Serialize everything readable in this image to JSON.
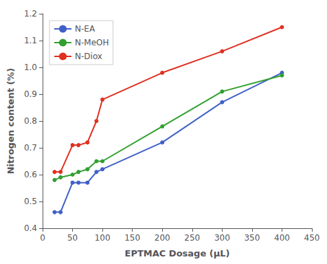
{
  "chart_data": {
    "type": "line",
    "title": "",
    "xlabel": "EPTMAC Dosage (μL)",
    "ylabel": "Nitrogen content (%)",
    "x": [
      20,
      30,
      50,
      60,
      75,
      90,
      100,
      200,
      300,
      400
    ],
    "series": [
      {
        "name": "N-EA",
        "color": "#4060c8",
        "values": [
          0.46,
          0.46,
          0.57,
          0.57,
          0.57,
          0.61,
          0.62,
          0.72,
          0.87,
          0.98
        ]
      },
      {
        "name": "N-MeOH",
        "color": "#30a030",
        "values": [
          0.58,
          0.59,
          0.6,
          0.61,
          0.62,
          0.65,
          0.65,
          0.78,
          0.91,
          0.97
        ]
      },
      {
        "name": "N-Diox",
        "color": "#e03020",
        "values": [
          0.61,
          0.61,
          0.71,
          0.71,
          0.72,
          0.8,
          0.88,
          0.98,
          1.06,
          1.15
        ]
      }
    ],
    "xlim": [
      0,
      450
    ],
    "xticks": [
      0,
      50,
      100,
      150,
      200,
      250,
      300,
      350,
      400,
      450
    ],
    "ylim": [
      0.4,
      1.2
    ],
    "yticks": [
      0.4,
      0.5,
      0.6,
      0.7,
      0.8,
      0.9,
      {
        "value": 1,
        "label": "1.0"
      },
      1.1,
      1.2
    ],
    "grid": false,
    "legend": "upper left",
    "marker": "o"
  }
}
